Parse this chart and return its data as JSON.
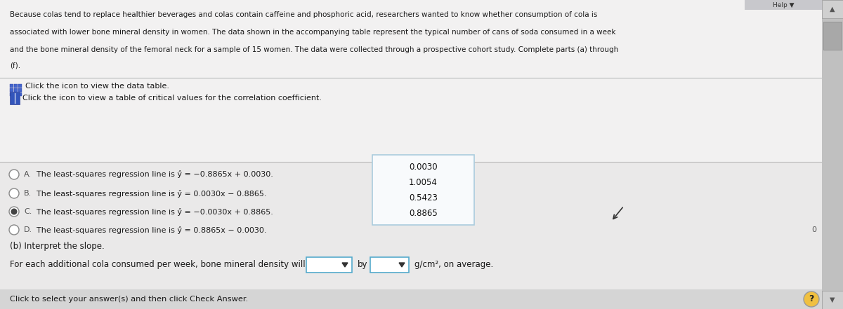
{
  "bg_top": "#f0efef",
  "bg_bottom": "#e8e7e7",
  "bg_very_bottom": "#dcdcdc",
  "top_text_line1": "Because colas tend to replace healthier beverages and colas contain caffeine and phosphoric acid, researchers wanted to know whether consumption of cola is",
  "top_text_line2": "associated with lower bone mineral density in women. The data shown in the accompanying table represent the typical number of cans of soda consumed in a week",
  "top_text_line3": "and the bone mineral density of the femoral neck for a sample of 15 women. The data were collected through a prospective cohort study. Complete parts (a) through",
  "top_text_line4": "(f).",
  "click_data_table": "Click the icon to view the data table.",
  "click_critical": "Click the icon to view a table of critical values for the correlation coefficient.",
  "option_A_text": "The least-squares regression line is ŷ = −0.8865x + 0.0030.",
  "option_B_text": "The least-squares regression line is ŷ = 0.0030x − 0.8865.",
  "option_C_text": "The least-squares regression line is ŷ = −0.0030x + 0.8865.",
  "option_D_text": "The least-squares regression line is ŷ = 0.8865x − 0.0030.",
  "part_b": "(b) Interpret the slope.",
  "bottom_sentence": "For each additional cola consumed per week, bone mineral density will",
  "by_text": "by",
  "gcm2_text": "g/cm², on average.",
  "dropdown_values": [
    "0.0030",
    "1.0054",
    "0.5423",
    "0.8865"
  ],
  "bottom_label": "Click to select your answer(s) and then click Check Answer.",
  "zero_label": "0",
  "question_mark": "?",
  "scrollbar_color": "#c8c8c8",
  "scrollbar_thumb": "#a0a0a0",
  "text_color": "#1a1a1a",
  "option_label_color": "#555555"
}
